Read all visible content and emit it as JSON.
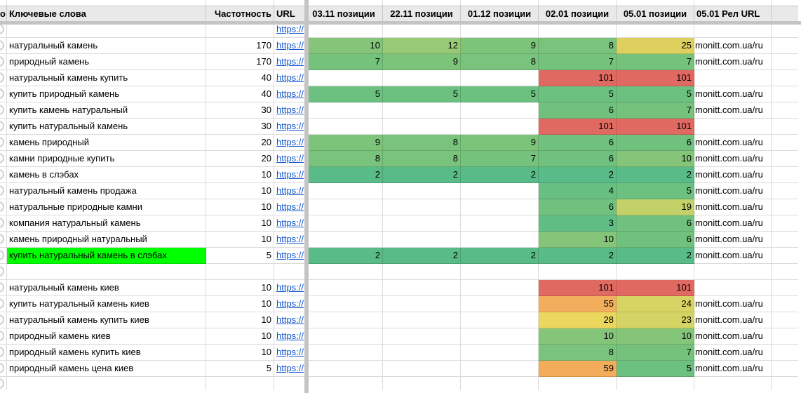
{
  "header": {
    "corner_fragment": "о",
    "columns": [
      {
        "id": "keyword",
        "label": "Ключевые слова"
      },
      {
        "id": "freq",
        "label": "Частотность"
      },
      {
        "id": "url",
        "label": "URL"
      },
      {
        "id": "pos1",
        "label": "03.11 позиции"
      },
      {
        "id": "pos2",
        "label": "22.11 позиции"
      },
      {
        "id": "pos3",
        "label": "01.12 позиции"
      },
      {
        "id": "pos4",
        "label": "02.01 позиции"
      },
      {
        "id": "pos5",
        "label": "05.01 позиции"
      },
      {
        "id": "rel",
        "label": "05.01 Рел URL"
      }
    ]
  },
  "links": {
    "url_text": "https://",
    "rel_text": "monitt.com.ua/ru"
  },
  "colors": {
    "highlight_green": "#00ff00",
    "header_bg": "#e9e9e9",
    "gridline": "#d9d9d9",
    "frozen_divider": "#c4c4c4",
    "link_blue": "#1155cc",
    "scale_best_green": "#59bb87",
    "scale_mid_yellow": "#ddd05f",
    "scale_worst_red": "#e06961"
  },
  "rows": [
    {
      "keyword": "",
      "freq": "",
      "has_url": true,
      "highlight": false,
      "rel": false,
      "positions": [
        null,
        null,
        null,
        null,
        null
      ]
    },
    {
      "keyword": "натуральный камень",
      "freq": "170",
      "has_url": true,
      "highlight": false,
      "rel": true,
      "positions": [
        {
          "v": "10",
          "c": "#84c57a"
        },
        {
          "v": "12",
          "c": "#98c977"
        },
        {
          "v": "9",
          "c": "#7dc47b"
        },
        {
          "v": "8",
          "c": "#79c37c"
        },
        {
          "v": "25",
          "c": "#ddd05f"
        }
      ]
    },
    {
      "keyword": "природный камень",
      "freq": "170",
      "has_url": true,
      "highlight": false,
      "rel": true,
      "positions": [
        {
          "v": "7",
          "c": "#75c27d"
        },
        {
          "v": "9",
          "c": "#7dc47b"
        },
        {
          "v": "8",
          "c": "#79c37c"
        },
        {
          "v": "7",
          "c": "#75c27d"
        },
        {
          "v": "7",
          "c": "#75c27d"
        }
      ]
    },
    {
      "keyword": "натуральный камень купить",
      "freq": "40",
      "has_url": true,
      "highlight": false,
      "rel": false,
      "positions": [
        null,
        null,
        null,
        {
          "v": "101",
          "c": "#e06961"
        },
        {
          "v": "101",
          "c": "#e06961"
        }
      ]
    },
    {
      "keyword": "купить природный камень",
      "freq": "40",
      "has_url": true,
      "highlight": false,
      "rel": true,
      "positions": [
        {
          "v": "5",
          "c": "#6cc080"
        },
        {
          "v": "5",
          "c": "#6cc080"
        },
        {
          "v": "5",
          "c": "#6cc080"
        },
        {
          "v": "5",
          "c": "#6cc080"
        },
        {
          "v": "5",
          "c": "#6cc080"
        }
      ]
    },
    {
      "keyword": "купить камень натуральный",
      "freq": "30",
      "has_url": true,
      "highlight": false,
      "rel": true,
      "positions": [
        null,
        null,
        null,
        {
          "v": "6",
          "c": "#71c17e"
        },
        {
          "v": "7",
          "c": "#75c27d"
        }
      ]
    },
    {
      "keyword": "купить натуральный камень",
      "freq": "30",
      "has_url": true,
      "highlight": false,
      "rel": false,
      "positions": [
        null,
        null,
        null,
        {
          "v": "101",
          "c": "#e06961"
        },
        {
          "v": "101",
          "c": "#e06961"
        }
      ]
    },
    {
      "keyword": "камень природный",
      "freq": "20",
      "has_url": true,
      "highlight": false,
      "rel": true,
      "positions": [
        {
          "v": "9",
          "c": "#7dc47b"
        },
        {
          "v": "8",
          "c": "#79c37c"
        },
        {
          "v": "9",
          "c": "#7dc47b"
        },
        {
          "v": "6",
          "c": "#71c17e"
        },
        {
          "v": "6",
          "c": "#71c17e"
        }
      ]
    },
    {
      "keyword": "камни природные купить",
      "freq": "20",
      "has_url": true,
      "highlight": false,
      "rel": true,
      "positions": [
        {
          "v": "8",
          "c": "#79c37c"
        },
        {
          "v": "8",
          "c": "#79c37c"
        },
        {
          "v": "7",
          "c": "#75c27d"
        },
        {
          "v": "6",
          "c": "#71c17e"
        },
        {
          "v": "10",
          "c": "#84c57a"
        }
      ]
    },
    {
      "keyword": "камень в слэбах",
      "freq": "10",
      "has_url": true,
      "highlight": false,
      "rel": true,
      "positions": [
        {
          "v": "2",
          "c": "#59bb87"
        },
        {
          "v": "2",
          "c": "#59bb87"
        },
        {
          "v": "2",
          "c": "#59bb87"
        },
        {
          "v": "2",
          "c": "#59bb87"
        },
        {
          "v": "2",
          "c": "#59bb87"
        }
      ]
    },
    {
      "keyword": "натуральный камень продажа",
      "freq": "10",
      "has_url": true,
      "highlight": false,
      "rel": true,
      "positions": [
        null,
        null,
        null,
        {
          "v": "4",
          "c": "#67bf82"
        },
        {
          "v": "5",
          "c": "#6cc080"
        }
      ]
    },
    {
      "keyword": "натуральные природные камни",
      "freq": "10",
      "has_url": true,
      "highlight": false,
      "rel": true,
      "positions": [
        null,
        null,
        null,
        {
          "v": "6",
          "c": "#71c17e"
        },
        {
          "v": "19",
          "c": "#c3d168"
        }
      ]
    },
    {
      "keyword": "компания натуральный камень",
      "freq": "10",
      "has_url": true,
      "highlight": false,
      "rel": true,
      "positions": [
        null,
        null,
        null,
        {
          "v": "3",
          "c": "#60bd84"
        },
        {
          "v": "6",
          "c": "#71c17e"
        }
      ]
    },
    {
      "keyword": "камень природный натуральный",
      "freq": "10",
      "has_url": true,
      "highlight": false,
      "rel": true,
      "positions": [
        null,
        null,
        null,
        {
          "v": "10",
          "c": "#84c57a"
        },
        {
          "v": "6",
          "c": "#71c17e"
        }
      ]
    },
    {
      "keyword": "купить натуральный камень в слэбах",
      "freq": "5",
      "has_url": true,
      "highlight": true,
      "rel": true,
      "positions": [
        {
          "v": "2",
          "c": "#59bb87"
        },
        {
          "v": "2",
          "c": "#59bb87"
        },
        {
          "v": "2",
          "c": "#59bb87"
        },
        {
          "v": "2",
          "c": "#59bb87"
        },
        {
          "v": "2",
          "c": "#59bb87"
        }
      ]
    },
    {
      "keyword": "",
      "freq": "",
      "has_url": false,
      "highlight": false,
      "rel": false,
      "positions": [
        null,
        null,
        null,
        null,
        null
      ]
    },
    {
      "keyword": "натуральный камень киев",
      "freq": "10",
      "has_url": true,
      "highlight": false,
      "rel": false,
      "positions": [
        null,
        null,
        null,
        {
          "v": "101",
          "c": "#e06961"
        },
        {
          "v": "101",
          "c": "#e06961"
        }
      ]
    },
    {
      "keyword": "купить натуральный камень киев",
      "freq": "10",
      "has_url": true,
      "highlight": false,
      "rel": true,
      "positions": [
        null,
        null,
        null,
        {
          "v": "55",
          "c": "#f3ae5d"
        },
        {
          "v": "24",
          "c": "#d8d463"
        }
      ]
    },
    {
      "keyword": "натуральный камень купить киев",
      "freq": "10",
      "has_url": true,
      "highlight": false,
      "rel": true,
      "positions": [
        null,
        null,
        null,
        {
          "v": "28",
          "c": "#ecd75e"
        },
        {
          "v": "23",
          "c": "#d4d464"
        }
      ]
    },
    {
      "keyword": "природный камень киев",
      "freq": "10",
      "has_url": true,
      "highlight": false,
      "rel": true,
      "positions": [
        null,
        null,
        null,
        {
          "v": "10",
          "c": "#84c57a"
        },
        {
          "v": "10",
          "c": "#84c57a"
        }
      ]
    },
    {
      "keyword": "природный камень купить киев",
      "freq": "10",
      "has_url": true,
      "highlight": false,
      "rel": true,
      "positions": [
        null,
        null,
        null,
        {
          "v": "8",
          "c": "#79c37c"
        },
        {
          "v": "7",
          "c": "#75c27d"
        }
      ]
    },
    {
      "keyword": "природный камень цена киев",
      "freq": "5",
      "has_url": true,
      "highlight": false,
      "rel": true,
      "positions": [
        null,
        null,
        null,
        {
          "v": "59",
          "c": "#f3ad5a"
        },
        {
          "v": "5",
          "c": "#6cc080"
        }
      ]
    },
    {
      "keyword": "",
      "freq": "",
      "has_url": false,
      "highlight": false,
      "rel": false,
      "positions": [
        null,
        null,
        null,
        null,
        null
      ]
    }
  ]
}
